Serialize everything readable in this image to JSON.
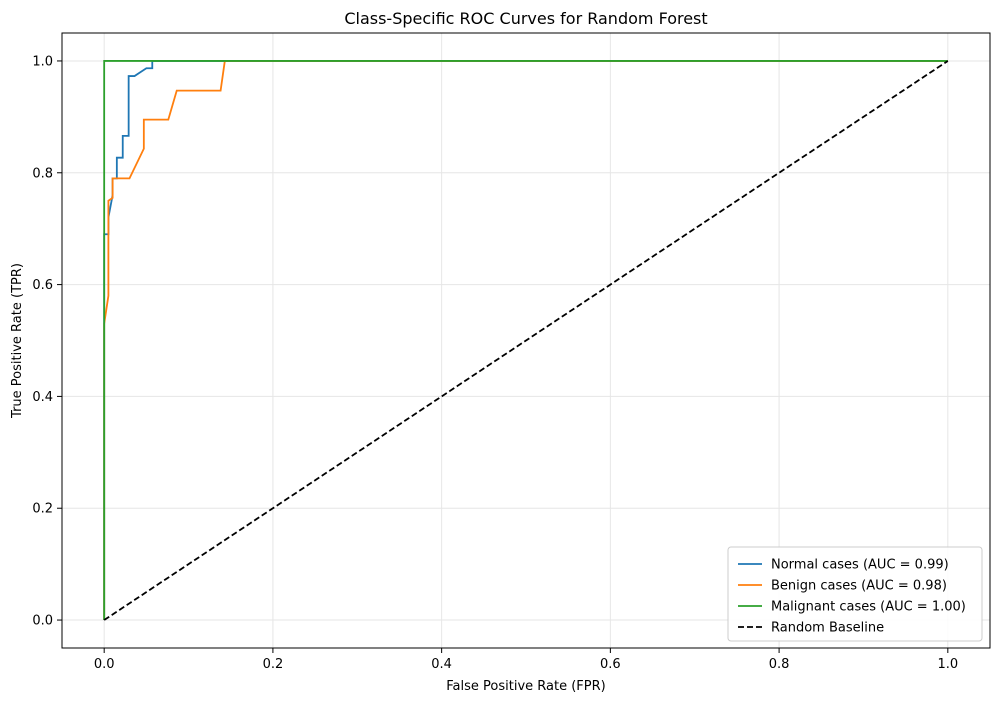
{
  "chart_data": {
    "type": "line",
    "title": "Class-Specific ROC Curves for Random Forest",
    "xlabel": "False Positive Rate (FPR)",
    "ylabel": "True Positive Rate (TPR)",
    "xlim": [
      -0.05,
      1.05
    ],
    "ylim": [
      -0.05,
      1.05
    ],
    "xticks": [
      0.0,
      0.2,
      0.4,
      0.6,
      0.8,
      1.0
    ],
    "xtick_labels": [
      "0.0",
      "0.2",
      "0.4",
      "0.6",
      "0.8",
      "1.0"
    ],
    "yticks": [
      0.0,
      0.2,
      0.4,
      0.6,
      0.8,
      1.0
    ],
    "ytick_labels": [
      "0.0",
      "0.2",
      "0.4",
      "0.6",
      "0.8",
      "1.0"
    ],
    "grid": true,
    "legend_position": "lower-right",
    "series": [
      {
        "name": "Normal cases (AUC = 0.99)",
        "color": "#1f77b4",
        "dash": "solid",
        "x": [
          0.0,
          0.0,
          0.005,
          0.005,
          0.01,
          0.01,
          0.015,
          0.015,
          0.022,
          0.022,
          0.029,
          0.029,
          0.036,
          0.043,
          0.05,
          0.057,
          0.057,
          0.143,
          1.0
        ],
        "y": [
          0.0,
          0.69,
          0.69,
          0.72,
          0.76,
          0.79,
          0.79,
          0.827,
          0.827,
          0.866,
          0.866,
          0.973,
          0.973,
          0.98,
          0.987,
          0.987,
          1.0,
          1.0,
          1.0
        ]
      },
      {
        "name": "Benign cases (AUC = 0.98)",
        "color": "#ff7f0e",
        "dash": "solid",
        "x": [
          0.0,
          0.0,
          0.005,
          0.005,
          0.01,
          0.01,
          0.015,
          0.015,
          0.03,
          0.047,
          0.047,
          0.076,
          0.086,
          0.086,
          0.138,
          0.143,
          1.0
        ],
        "y": [
          0.0,
          0.53,
          0.58,
          0.75,
          0.755,
          0.79,
          0.79,
          0.79,
          0.79,
          0.843,
          0.895,
          0.895,
          0.947,
          0.947,
          0.947,
          1.0,
          1.0
        ]
      },
      {
        "name": "Malignant cases (AUC = 1.00)",
        "color": "#2ca02c",
        "dash": "solid",
        "x": [
          0.0,
          0.0,
          1.0
        ],
        "y": [
          0.0,
          1.0,
          1.0
        ]
      },
      {
        "name": "Random Baseline",
        "color": "#000000",
        "dash": "dashed",
        "x": [
          0.0,
          1.0
        ],
        "y": [
          0.0,
          1.0
        ]
      }
    ]
  }
}
